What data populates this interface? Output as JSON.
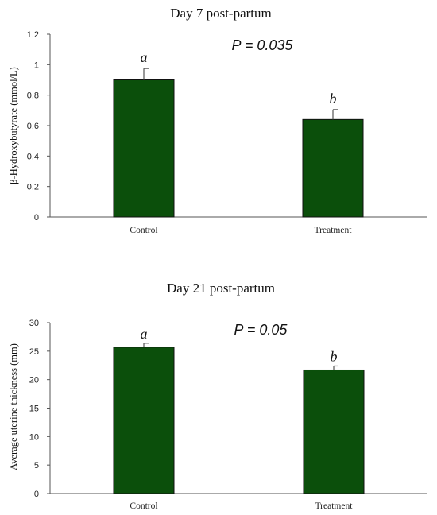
{
  "chart_data": [
    {
      "type": "bar",
      "title": "Day 7 post-partum",
      "ylabel": "β-Hydroxybutyrate (mmol/L)",
      "xlabel": "",
      "categories": [
        "Control",
        "Treatment"
      ],
      "values": [
        0.9,
        0.64
      ],
      "errors": [
        0.075,
        0.065
      ],
      "ylim": [
        0,
        1.2
      ],
      "yticks": [
        "0",
        "0.2",
        "0.4",
        "0.6",
        "0.8",
        "1",
        "1.2"
      ],
      "yticks_values": [
        0,
        0.2,
        0.4,
        0.6,
        0.8,
        1,
        1.2
      ],
      "annotations": {
        "p_value": "P = 0.035",
        "letters": [
          "a",
          "b"
        ]
      },
      "bar_color": "#0b4f0b",
      "grid": false
    },
    {
      "type": "bar",
      "title": "Day 21 post-partum",
      "ylabel": "Average uterine thickness (mm)",
      "xlabel": "",
      "categories": [
        "Control",
        "Treatment"
      ],
      "values": [
        25.7,
        21.7
      ],
      "errors": [
        0.7,
        0.7
      ],
      "ylim": [
        0,
        30
      ],
      "yticks": [
        "0",
        "5",
        "10",
        "15",
        "20",
        "25",
        "30"
      ],
      "yticks_values": [
        0,
        5,
        10,
        15,
        20,
        25,
        30
      ],
      "annotations": {
        "p_value": "P = 0.05",
        "letters": [
          "a",
          "b"
        ]
      },
      "bar_color": "#0b4f0b",
      "grid": false
    }
  ]
}
